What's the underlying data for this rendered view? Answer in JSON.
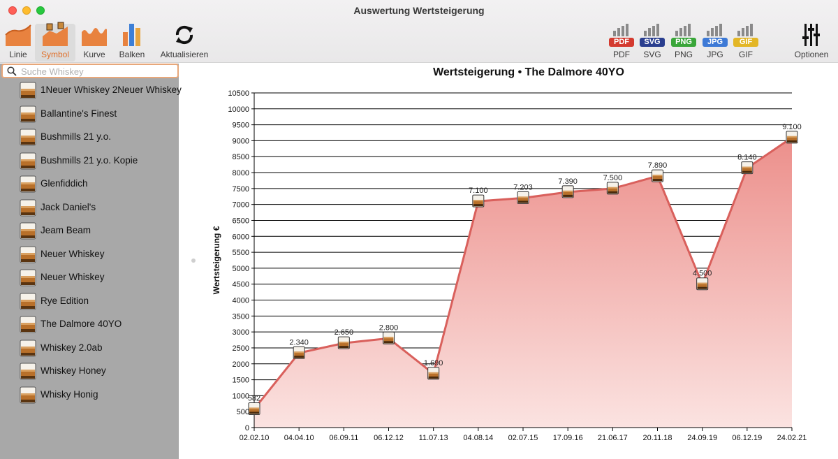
{
  "window": {
    "title": "Auswertung Wertsteigerung"
  },
  "toolbar": {
    "chart_types": [
      {
        "label": "Linie",
        "icon": "line-chart-icon",
        "selected": false
      },
      {
        "label": "Symbol",
        "icon": "symbol-chart-icon",
        "selected": true
      },
      {
        "label": "Kurve",
        "icon": "curve-chart-icon",
        "selected": false
      },
      {
        "label": "Balken",
        "icon": "bar-chart-icon",
        "selected": false
      }
    ],
    "refresh_label": "Aktualisieren",
    "exports": [
      {
        "label": "PDF",
        "badge": "PDF",
        "color": "#d43a2f"
      },
      {
        "label": "SVG",
        "badge": "SVG",
        "color": "#2a3e8f"
      },
      {
        "label": "PNG",
        "badge": "PNG",
        "color": "#3aa63a"
      },
      {
        "label": "JPG",
        "badge": "JPG",
        "color": "#3d79d6"
      },
      {
        "label": "GIF",
        "badge": "GIF",
        "color": "#e3b626"
      }
    ],
    "options_label": "Optionen"
  },
  "sidebar": {
    "search_placeholder": "Suche Whiskey",
    "search_value": "",
    "items": [
      "1Neuer Whiskey 2Neuer Whiskey",
      "Ballantine's Finest",
      "Bushmills 21 y.o.",
      "Bushmills 21 y.o. Kopie",
      "Glenfiddich",
      "Jack Daniel's",
      "Jeam Beam",
      "Neuer Whiskey",
      "Neuer Whiskey",
      "Rye Edition",
      "The Dalmore 40YO",
      "Whiskey 2.0ab",
      "Whiskey Honey",
      "Whisky Honig"
    ]
  },
  "colors": {
    "accent": "#e0702a",
    "area_fill": "#ec8f8b",
    "area_line": "#d9605c",
    "sidebar_bg": "#a8a8a8"
  },
  "chart_data": {
    "type": "area",
    "title": "Wertsteigerung • The Dalmore 40YO",
    "xlabel": "",
    "ylabel": "Wertsteigerung €",
    "ylim": [
      0,
      10500
    ],
    "ytick_step": 500,
    "grid": true,
    "marker": "whisky-glass",
    "categories": [
      "02.02.10",
      "04.04.10",
      "06.09.11",
      "06.12.12",
      "11.07.13",
      "04.08.14",
      "02.07.15",
      "17.09.16",
      "21.06.17",
      "20.11.18",
      "24.09.19",
      "06.12.19",
      "24.02.21"
    ],
    "values": [
      582,
      2340,
      2650,
      2800,
      1690,
      7100,
      7203,
      7390,
      7500,
      7890,
      4500,
      8140,
      9100
    ],
    "value_labels": [
      "582",
      "2.340",
      "2.650",
      "2.800",
      "1.690",
      "7.100",
      "7.203",
      "7.390",
      "7.500",
      "7.890",
      "4.500",
      "8.140",
      "9.100"
    ]
  }
}
